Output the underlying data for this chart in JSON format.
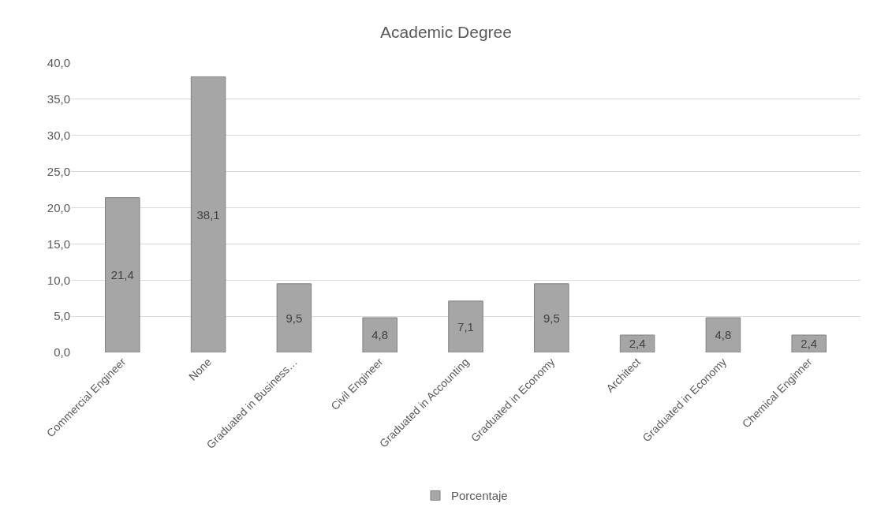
{
  "chart_data": {
    "type": "bar",
    "title": "Academic Degree",
    "categories": [
      "Commercial Engineer",
      "None",
      "Graduated in Business…",
      "Civil Engineer",
      "Graduated in Accounting",
      "Graduated in Economy",
      "Architect",
      "Graduated in Economy",
      "Chemical Enginner"
    ],
    "series": [
      {
        "name": "Porcentaje",
        "color": "#a6a6a6",
        "values": [
          21.4,
          38.1,
          9.5,
          4.8,
          7.1,
          9.5,
          2.4,
          4.8,
          2.4
        ],
        "value_labels": [
          "21,4",
          "38,1",
          "9,5",
          "4,8",
          "7,1",
          "9,5",
          "2,4",
          "4,8",
          "2,4"
        ]
      }
    ],
    "ylim": [
      0,
      40
    ],
    "yticks": [
      {
        "value": 0,
        "label": "0,0"
      },
      {
        "value": 5,
        "label": "5,0"
      },
      {
        "value": 10,
        "label": "10,0"
      },
      {
        "value": 15,
        "label": "15,0"
      },
      {
        "value": 20,
        "label": "20,0"
      },
      {
        "value": 25,
        "label": "25,0"
      },
      {
        "value": 30,
        "label": "30,0"
      },
      {
        "value": 35,
        "label": "35,0"
      },
      {
        "value": 40,
        "label": "40,0"
      }
    ],
    "grid": "y",
    "legend": "bottom"
  }
}
